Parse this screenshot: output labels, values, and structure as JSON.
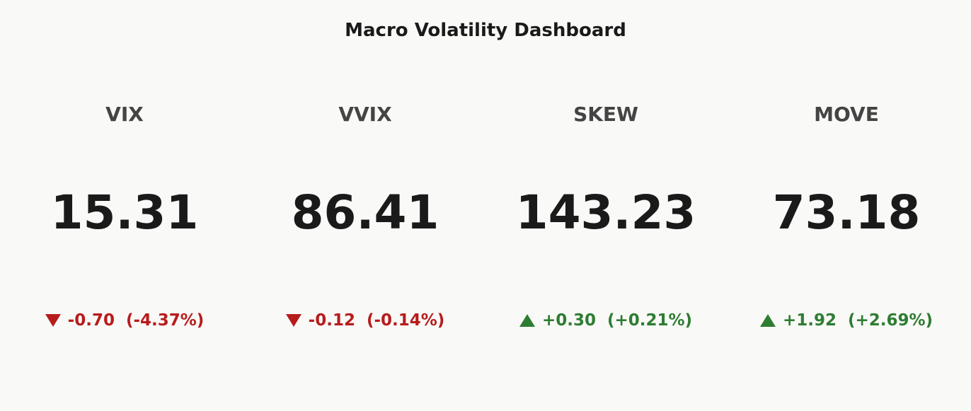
{
  "header": {
    "title": "Macro Volatility Dashboard"
  },
  "tiles": [
    {
      "label": "VIX",
      "value": "15.31",
      "change": "-0.70",
      "change_pct": "(-4.37%)",
      "direction": "down",
      "color": "#b71c1c"
    },
    {
      "label": "VVIX",
      "value": "86.41",
      "change": "-0.12",
      "change_pct": "(-0.14%)",
      "direction": "down",
      "color": "#b71c1c"
    },
    {
      "label": "SKEW",
      "value": "143.23",
      "change": "+0.30",
      "change_pct": "(+0.21%)",
      "direction": "up",
      "color": "#2e7d32"
    },
    {
      "label": "MOVE",
      "value": "73.18",
      "change": "+1.92",
      "change_pct": "(+2.69%)",
      "direction": "up",
      "color": "#2e7d32"
    }
  ]
}
